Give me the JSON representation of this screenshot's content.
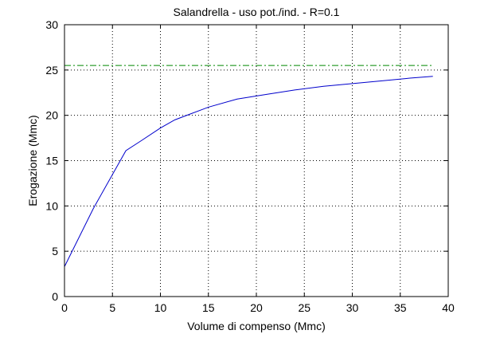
{
  "chart_data": {
    "type": "line",
    "title": "Salandrella  -  uso pot./ind.  -   R=0.1",
    "xlabel": "Volume di compenso (Mmc)",
    "ylabel": "Erogazione (Mmc)",
    "xlim": [
      0,
      40
    ],
    "ylim": [
      0,
      30
    ],
    "xticks": [
      0,
      5,
      10,
      15,
      20,
      25,
      30,
      35,
      40
    ],
    "yticks": [
      0,
      5,
      10,
      15,
      20,
      25,
      30
    ],
    "xtick_labels": [
      "0",
      "5",
      "10",
      "15",
      "20",
      "25",
      "30",
      "35",
      "40"
    ],
    "ytick_labels": [
      "0",
      "5",
      "10",
      "15",
      "20",
      "25",
      "30"
    ],
    "grid": true,
    "grid_style": "dotted",
    "series": [
      {
        "color": "#0000cc",
        "line_style": "solid",
        "x": [
          0,
          3,
          6.4,
          8,
          10,
          11.5,
          13,
          15,
          18,
          21,
          24,
          27,
          30,
          33,
          36,
          38.4
        ],
        "y": [
          3.3,
          9.7,
          16.1,
          17.2,
          18.6,
          19.5,
          20.1,
          20.9,
          21.8,
          22.3,
          22.8,
          23.2,
          23.5,
          23.8,
          24.1,
          24.3
        ]
      },
      {
        "color": "#008800",
        "line_style": "dash-dot",
        "x": [
          0,
          38.4
        ],
        "y": [
          25.5,
          25.5
        ]
      }
    ]
  }
}
